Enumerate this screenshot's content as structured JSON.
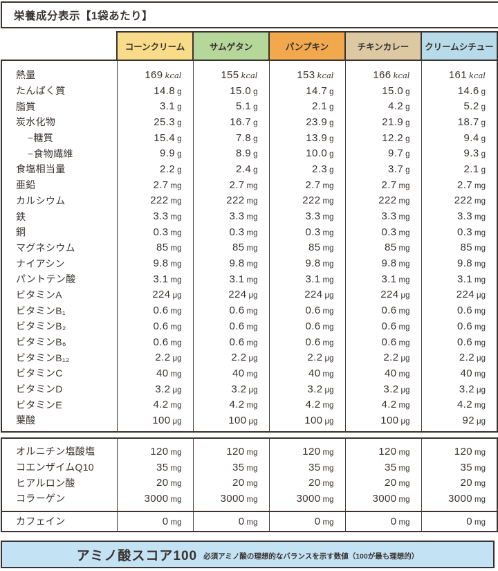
{
  "title": "栄養成分表示【1袋あたり】",
  "columns": [
    {
      "label": "コーンクリーム",
      "color": "#f8dc8a"
    },
    {
      "label": "サムゲタン",
      "color": "#b5d79a"
    },
    {
      "label": "パンプキン",
      "color": "#f2a94e"
    },
    {
      "label": "チキンカレー",
      "color": "#dcc9a4"
    },
    {
      "label": "クリームシチュー",
      "color": "#b7dbe8"
    }
  ],
  "nutrients": [
    {
      "label": "熱量",
      "indent": false,
      "unit": "kcal",
      "values": [
        "169",
        "155",
        "153",
        "166",
        "161"
      ]
    },
    {
      "label": "たんぱく質",
      "indent": false,
      "unit": "g",
      "values": [
        "14.8",
        "15.0",
        "14.7",
        "15.0",
        "14.6"
      ]
    },
    {
      "label": "脂質",
      "indent": false,
      "unit": "g",
      "values": [
        "3.1",
        "5.1",
        "2.1",
        "4.2",
        "5.2"
      ]
    },
    {
      "label": "炭水化物",
      "indent": false,
      "unit": "g",
      "values": [
        "25.3",
        "16.7",
        "23.9",
        "21.9",
        "18.7"
      ]
    },
    {
      "label": "−糖質",
      "indent": true,
      "unit": "g",
      "values": [
        "15.4",
        "7.8",
        "13.9",
        "12.2",
        "9.4"
      ]
    },
    {
      "label": "−食物繊維",
      "indent": true,
      "unit": "g",
      "values": [
        "9.9",
        "8.9",
        "10.0",
        "9.7",
        "9.3"
      ]
    },
    {
      "label": "食塩相当量",
      "indent": false,
      "unit": "g",
      "values": [
        "2.2",
        "2.4",
        "2.3",
        "3.7",
        "2.1"
      ]
    },
    {
      "label": "亜鉛",
      "indent": false,
      "unit": "mg",
      "values": [
        "2.7",
        "2.7",
        "2.7",
        "2.7",
        "2.7"
      ]
    },
    {
      "label": "カルシウム",
      "indent": false,
      "unit": "mg",
      "values": [
        "222",
        "222",
        "222",
        "222",
        "222"
      ]
    },
    {
      "label": "鉄",
      "indent": false,
      "unit": "mg",
      "values": [
        "3.3",
        "3.3",
        "3.3",
        "3.3",
        "3.3"
      ]
    },
    {
      "label": "銅",
      "indent": false,
      "unit": "mg",
      "values": [
        "0.3",
        "0.3",
        "0.3",
        "0.3",
        "0.3"
      ]
    },
    {
      "label": "マグネシウム",
      "indent": false,
      "unit": "mg",
      "values": [
        "85",
        "85",
        "85",
        "85",
        "85"
      ]
    },
    {
      "label": "ナイアシン",
      "indent": false,
      "unit": "mg",
      "values": [
        "9.8",
        "9.8",
        "9.8",
        "9.8",
        "9.8"
      ]
    },
    {
      "label": "パントテン酸",
      "indent": false,
      "unit": "mg",
      "values": [
        "3.1",
        "3.1",
        "3.1",
        "3.1",
        "3.1"
      ]
    },
    {
      "label": "ビタミンA",
      "indent": false,
      "unit": "μg",
      "values": [
        "224",
        "224",
        "224",
        "224",
        "224"
      ]
    },
    {
      "label": "ビタミンB₁",
      "indent": false,
      "unit": "mg",
      "values": [
        "0.6",
        "0.6",
        "0.6",
        "0.6",
        "0.6"
      ]
    },
    {
      "label": "ビタミンB₂",
      "indent": false,
      "unit": "mg",
      "values": [
        "0.6",
        "0.6",
        "0.6",
        "0.6",
        "0.6"
      ]
    },
    {
      "label": "ビタミンB₆",
      "indent": false,
      "unit": "mg",
      "values": [
        "0.6",
        "0.6",
        "0.6",
        "0.6",
        "0.6"
      ]
    },
    {
      "label": "ビタミンB₁₂",
      "indent": false,
      "unit": "μg",
      "values": [
        "2.2",
        "2.2",
        "2.2",
        "2.2",
        "2.2"
      ]
    },
    {
      "label": "ビタミンC",
      "indent": false,
      "unit": "mg",
      "values": [
        "40",
        "40",
        "40",
        "40",
        "40"
      ]
    },
    {
      "label": "ビタミンD",
      "indent": false,
      "unit": "μg",
      "values": [
        "3.2",
        "3.2",
        "3.2",
        "3.2",
        "3.2"
      ]
    },
    {
      "label": "ビタミンE",
      "indent": false,
      "unit": "mg",
      "values": [
        "4.2",
        "4.2",
        "4.2",
        "4.2",
        "4.2"
      ]
    },
    {
      "label": "葉酸",
      "indent": false,
      "unit": "μg",
      "values": [
        "100",
        "100",
        "100",
        "100",
        "92"
      ]
    }
  ],
  "supplements": [
    {
      "label": "オルニチン塩酸塩",
      "indent": false,
      "unit": "mg",
      "values": [
        "120",
        "120",
        "120",
        "120",
        "120"
      ]
    },
    {
      "label": "コエンザイムQ10",
      "indent": false,
      "unit": "mg",
      "values": [
        "35",
        "35",
        "35",
        "35",
        "35"
      ]
    },
    {
      "label": "ヒアルロン酸",
      "indent": false,
      "unit": "mg",
      "values": [
        "20",
        "20",
        "20",
        "20",
        "20"
      ]
    },
    {
      "label": "コラーゲン",
      "indent": false,
      "unit": "mg",
      "values": [
        "3000",
        "3000",
        "3000",
        "3000",
        "3000"
      ]
    }
  ],
  "caffeine": {
    "label": "カフェイン",
    "indent": false,
    "unit": "mg",
    "values": [
      "0",
      "0",
      "0",
      "0",
      "0"
    ]
  },
  "footer": {
    "title": "アミノ酸スコア100",
    "note": "必須アミノ酸の理想的なバランスを示す数値（100が最も理想的）"
  },
  "colors": {
    "border": "#39322f",
    "text": "#39322f",
    "footer_bg": "#c3e2f4"
  }
}
